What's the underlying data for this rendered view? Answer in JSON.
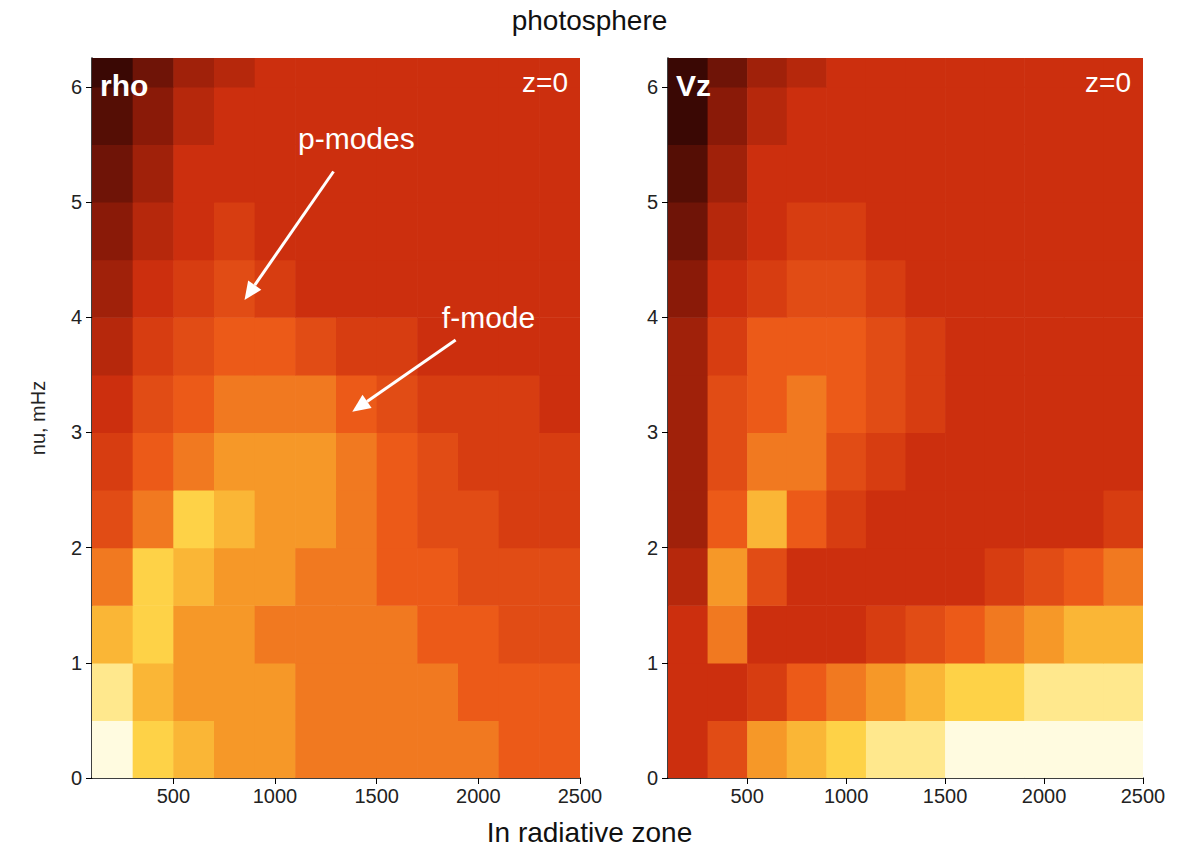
{
  "title": "photosphere",
  "footer": "In radiative zone",
  "chart_data": [
    {
      "type": "heatmap",
      "label": "rho",
      "sublabel": "z=0",
      "y_label": "nu, mHz",
      "xlim": [
        100,
        2500
      ],
      "xticks": [
        500,
        1000,
        1500,
        2000,
        2500
      ],
      "ylim": [
        0,
        6.25
      ],
      "yticks": [
        0,
        1,
        2,
        3,
        4,
        5,
        6
      ],
      "grid": false,
      "x": [
        200,
        400,
        600,
        800,
        1000,
        1200,
        1400,
        1600,
        1800,
        2000,
        2200,
        2400
      ],
      "y": [
        0.25,
        0.75,
        1.25,
        1.75,
        2.25,
        2.75,
        3.25,
        3.75,
        4.25,
        4.75,
        5.25,
        5.75,
        6.25
      ],
      "cells": [
        [
          9.5,
          8.5,
          8,
          7.5,
          7.5,
          7,
          7,
          7,
          7,
          7,
          6.5,
          6.5
        ],
        [
          9,
          8,
          7.5,
          7.5,
          7.5,
          7,
          7,
          7,
          7,
          6.5,
          6.5,
          6.5
        ],
        [
          8,
          8.5,
          7.5,
          7.5,
          7,
          7,
          7,
          7,
          6.5,
          6.5,
          6,
          6
        ],
        [
          7,
          8.5,
          8,
          7.5,
          7.5,
          7,
          7,
          6.5,
          6.5,
          6,
          6,
          6
        ],
        [
          6,
          7,
          8.5,
          8,
          7.5,
          7.5,
          7,
          6.5,
          6,
          6,
          5.5,
          5.5
        ],
        [
          5.5,
          6.5,
          7,
          7.5,
          7.5,
          7.5,
          7,
          6.5,
          6,
          5.5,
          5.5,
          5.5
        ],
        [
          5,
          6,
          6.5,
          7,
          7,
          7,
          6.5,
          6,
          5.5,
          5.5,
          5.5,
          5
        ],
        [
          4.5,
          5.5,
          6,
          6.5,
          6.5,
          6,
          5.5,
          5.5,
          5,
          5,
          5,
          5
        ],
        [
          4,
          5,
          5.5,
          6,
          5.5,
          5,
          5,
          5,
          5,
          5,
          5,
          5
        ],
        [
          3.5,
          4.5,
          5,
          5.5,
          5,
          5,
          5,
          5,
          5,
          5,
          5,
          5
        ],
        [
          3,
          4,
          5,
          5,
          5,
          5,
          5,
          5,
          5,
          5,
          5,
          5
        ],
        [
          2.5,
          3.5,
          4.5,
          5,
          5,
          5,
          5,
          5,
          5,
          5,
          5,
          5
        ],
        [
          2,
          3,
          4,
          4.5,
          5,
          5,
          5,
          5,
          5,
          5,
          5,
          5
        ]
      ],
      "annotations": [
        {
          "text": "p-modes",
          "x": 1400,
          "y": 5.55,
          "arrow_to": [
            850,
            4.15
          ]
        },
        {
          "text": "f-mode",
          "x": 2050,
          "y": 4.0,
          "arrow_to": [
            1380,
            3.18
          ]
        }
      ]
    },
    {
      "type": "heatmap",
      "label": "Vz",
      "sublabel": "z=0",
      "xlim": [
        100,
        2500
      ],
      "xticks": [
        500,
        1000,
        1500,
        2000,
        2500
      ],
      "ylim": [
        0,
        6.25
      ],
      "yticks": [
        0,
        1,
        2,
        3,
        4,
        5,
        6
      ],
      "grid": false,
      "x": [
        200,
        400,
        600,
        800,
        1000,
        1200,
        1400,
        1600,
        1800,
        2000,
        2200,
        2400
      ],
      "y": [
        0.25,
        0.75,
        1.25,
        1.75,
        2.25,
        2.75,
        3.25,
        3.75,
        4.25,
        4.75,
        5.25,
        5.75,
        6.25
      ],
      "cells": [
        [
          5,
          6,
          7.5,
          8,
          8.5,
          9,
          9,
          9.5,
          9.5,
          9.5,
          9.5,
          9.5
        ],
        [
          5,
          5,
          5.5,
          6.5,
          7,
          7.5,
          8,
          8.5,
          8.5,
          9,
          9,
          9
        ],
        [
          5,
          7,
          5,
          5,
          5,
          5.5,
          6,
          6.5,
          7,
          7.5,
          8,
          8
        ],
        [
          4.5,
          7.5,
          6,
          5,
          5,
          5,
          5,
          5,
          5.5,
          6,
          6.5,
          7
        ],
        [
          4,
          6.5,
          8,
          6.5,
          5.5,
          5,
          5,
          5,
          5,
          5,
          5,
          5.5
        ],
        [
          4,
          6,
          7,
          7,
          6,
          5.5,
          5,
          5,
          5,
          5,
          5,
          5
        ],
        [
          4,
          6,
          6.5,
          7,
          6.5,
          6,
          5.5,
          5,
          5,
          5,
          5,
          5
        ],
        [
          4,
          5.5,
          6.5,
          6.5,
          6.5,
          6,
          5.5,
          5,
          5,
          5,
          5,
          5
        ],
        [
          3.5,
          5,
          5.5,
          6,
          6,
          5.5,
          5,
          5,
          5,
          5,
          5,
          5
        ],
        [
          3,
          4.5,
          5,
          5.5,
          5.5,
          5,
          5,
          5,
          5,
          5,
          5,
          5
        ],
        [
          2.5,
          4,
          5,
          5,
          5,
          5,
          5,
          5,
          5,
          5,
          5,
          5
        ],
        [
          2,
          3.5,
          4.5,
          5,
          5,
          5,
          5,
          5,
          5,
          5,
          5,
          5
        ],
        [
          2,
          3,
          4,
          4.5,
          5,
          5,
          5,
          5,
          5,
          5,
          5,
          5
        ]
      ]
    }
  ]
}
